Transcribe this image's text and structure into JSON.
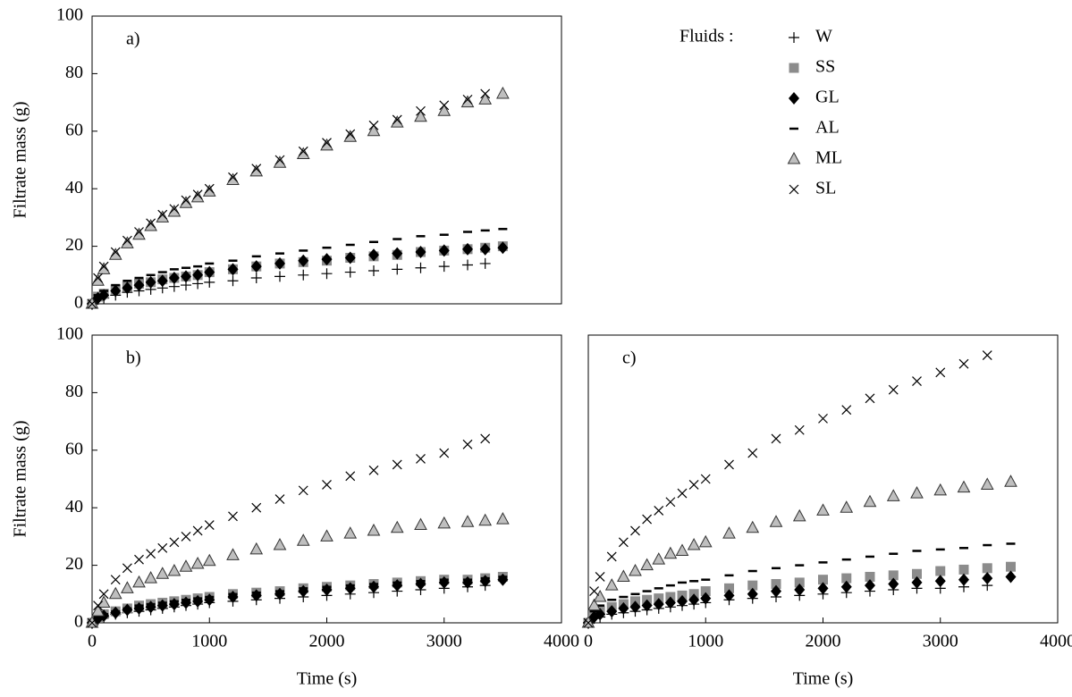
{
  "chart_data": [
    {
      "type": "scatter",
      "panel_label": "a)",
      "y_label": "Filtrate mass (g)",
      "legend_title": "Fluids :",
      "xlim": [
        0,
        4000
      ],
      "ylim": [
        0,
        100
      ],
      "yticks": [
        0,
        20,
        40,
        60,
        80,
        100
      ],
      "x": [
        0,
        50,
        100,
        200,
        300,
        400,
        500,
        600,
        700,
        800,
        900,
        1000,
        1200,
        1400,
        1600,
        1800,
        2000,
        2200,
        2400,
        2600,
        2800,
        3000,
        3200,
        3350,
        3500
      ],
      "series": [
        {
          "name": "W",
          "marker": "plus",
          "color": "#000000",
          "values": [
            0,
            1.5,
            2,
            3,
            4,
            4.5,
            5,
            5.5,
            6,
            6.5,
            7,
            7.5,
            8,
            9,
            9.5,
            10,
            10.5,
            11,
            11.5,
            12,
            12.5,
            13,
            13.5,
            14,
            null
          ]
        },
        {
          "name": "SS",
          "marker": "square",
          "color": "#8c8c8c",
          "values": [
            0,
            2.5,
            3.5,
            5,
            6,
            7,
            7.5,
            8.5,
            9,
            9.5,
            10,
            11,
            12,
            13,
            14,
            14.5,
            15,
            16,
            16.5,
            17,
            18,
            18.5,
            19,
            19.5,
            20
          ]
        },
        {
          "name": "GL",
          "marker": "diamond",
          "color": "#000000",
          "values": [
            0,
            2,
            3,
            4.5,
            5.5,
            6.5,
            7.5,
            8,
            9,
            9.5,
            10,
            11,
            12,
            13,
            14,
            15,
            15.5,
            16,
            17,
            17.5,
            18,
            18.5,
            19,
            19,
            19.5
          ]
        },
        {
          "name": "AL",
          "marker": "dash",
          "color": "#000000",
          "values": [
            0,
            3,
            4.5,
            6.5,
            8,
            9,
            10,
            11,
            12,
            12.5,
            13,
            14,
            15,
            16.5,
            17.5,
            18.5,
            19.5,
            20.5,
            21.5,
            22.5,
            23.5,
            24,
            25,
            25.5,
            26
          ]
        },
        {
          "name": "ML",
          "marker": "triangle",
          "color": "#bfbfbf",
          "values": [
            0,
            8,
            12,
            17,
            21,
            24,
            27,
            30,
            32,
            35,
            37,
            39,
            43,
            46,
            49,
            52,
            55,
            58,
            60,
            63,
            65,
            67,
            70,
            71,
            73
          ]
        },
        {
          "name": "SL",
          "marker": "x",
          "color": "#000000",
          "values": [
            0,
            9,
            13,
            18,
            22,
            25,
            28,
            31,
            33,
            36,
            38,
            40,
            44,
            47,
            50,
            53,
            56,
            59,
            62,
            64,
            67,
            69,
            71,
            73,
            null
          ]
        }
      ]
    },
    {
      "type": "scatter",
      "panel_label": "b)",
      "y_label": "Filtrate mass (g)",
      "x_label": "Time (s)",
      "xlim": [
        0,
        4000
      ],
      "ylim": [
        0,
        100
      ],
      "xticks": [
        0,
        1000,
        2000,
        3000,
        4000
      ],
      "yticks": [
        0,
        20,
        40,
        60,
        80,
        100
      ],
      "x": [
        0,
        50,
        100,
        200,
        300,
        400,
        500,
        600,
        700,
        800,
        900,
        1000,
        1200,
        1400,
        1600,
        1800,
        2000,
        2200,
        2400,
        2600,
        2800,
        3000,
        3200,
        3350,
        3500
      ],
      "series": [
        {
          "marker": "plus",
          "color": "#000000",
          "values": [
            0,
            1,
            2,
            3,
            3.5,
            4,
            4.5,
            5,
            5.5,
            6,
            6.5,
            7,
            7.5,
            8,
            8.5,
            9,
            9.5,
            10,
            10.5,
            11,
            11.5,
            12,
            12.5,
            13,
            null
          ]
        },
        {
          "marker": "square",
          "color": "#8c8c8c",
          "values": [
            0,
            2,
            3,
            4,
            5,
            6,
            6.5,
            7,
            7.5,
            8,
            8.5,
            9,
            10,
            10.5,
            11,
            12,
            12.5,
            13,
            13.5,
            14,
            14.5,
            15,
            15,
            15.5,
            16
          ]
        },
        {
          "marker": "diamond",
          "color": "#000000",
          "values": [
            0,
            1.5,
            2.5,
            3.5,
            4.5,
            5,
            5.5,
            6,
            6.5,
            7,
            7.5,
            8,
            9,
            9.5,
            10,
            11,
            11.5,
            12,
            12.5,
            13,
            13.5,
            14,
            14,
            14.5,
            15
          ]
        },
        {
          "marker": "dash",
          "color": "#000000",
          "values": [
            0,
            2,
            3,
            4,
            5,
            6,
            6.5,
            7,
            7.5,
            8,
            8.5,
            9,
            10,
            10.5,
            11,
            12,
            12.5,
            13,
            13.5,
            14,
            14.5,
            15,
            15,
            15.5,
            16
          ]
        },
        {
          "marker": "triangle",
          "color": "#bfbfbf",
          "values": [
            0,
            4,
            7,
            10,
            12,
            14,
            15.5,
            17,
            18,
            19.5,
            20.5,
            21.5,
            23.5,
            25.5,
            27,
            28.5,
            30,
            31,
            32,
            33,
            34,
            34.5,
            35,
            35.5,
            36
          ]
        },
        {
          "marker": "x",
          "color": "#000000",
          "values": [
            0,
            6,
            10,
            15,
            19,
            22,
            24,
            26,
            28,
            30,
            32,
            34,
            37,
            40,
            43,
            46,
            48,
            51,
            53,
            55,
            57,
            59,
            62,
            64,
            null
          ]
        }
      ]
    },
    {
      "type": "scatter",
      "panel_label": "c)",
      "x_label": "Time (s)",
      "xlim": [
        0,
        4000
      ],
      "ylim": [
        0,
        100
      ],
      "xticks": [
        0,
        1000,
        2000,
        3000,
        4000
      ],
      "x": [
        0,
        50,
        100,
        200,
        300,
        400,
        500,
        600,
        700,
        800,
        900,
        1000,
        1200,
        1400,
        1600,
        1800,
        2000,
        2200,
        2400,
        2600,
        2800,
        3000,
        3200,
        3400,
        3600
      ],
      "series": [
        {
          "marker": "plus",
          "color": "#000000",
          "values": [
            0,
            1.5,
            2,
            3,
            3.5,
            4,
            4.5,
            5,
            5.5,
            6,
            6.5,
            7,
            8,
            8.5,
            9,
            9.5,
            10,
            10.5,
            11,
            11.5,
            12,
            12,
            12.5,
            13,
            null
          ]
        },
        {
          "marker": "square",
          "color": "#8c8c8c",
          "values": [
            0,
            3,
            4,
            5.5,
            6.5,
            7.5,
            8,
            8.5,
            9,
            9.5,
            10,
            11,
            12,
            13,
            13.5,
            14,
            15,
            15.5,
            16,
            16.5,
            17,
            18,
            18.5,
            19,
            19.5
          ]
        },
        {
          "marker": "diamond",
          "color": "#000000",
          "values": [
            0,
            2,
            3,
            4,
            5,
            5.5,
            6,
            6.5,
            7,
            7.5,
            8,
            8.5,
            9.5,
            10,
            11,
            11.5,
            12,
            12.5,
            13,
            13.5,
            14,
            14.5,
            15,
            15.5,
            16
          ]
        },
        {
          "marker": "dash",
          "color": "#000000",
          "values": [
            0,
            4,
            6,
            8,
            9,
            10,
            11,
            12,
            13,
            14,
            14.5,
            15,
            16.5,
            18,
            19,
            20,
            21,
            22,
            23,
            24,
            25,
            25.5,
            26,
            27,
            27.5
          ]
        },
        {
          "marker": "triangle",
          "color": "#bfbfbf",
          "values": [
            0,
            6,
            9,
            13,
            16,
            18,
            20,
            22,
            24,
            25,
            27,
            28,
            31,
            33,
            35,
            37,
            39,
            40,
            42,
            44,
            45,
            46,
            47,
            48,
            49
          ]
        },
        {
          "marker": "x",
          "color": "#000000",
          "values": [
            0,
            11,
            16,
            23,
            28,
            32,
            36,
            39,
            42,
            45,
            48,
            50,
            55,
            59,
            64,
            67,
            71,
            74,
            78,
            81,
            84,
            87,
            90,
            93,
            null
          ]
        }
      ]
    }
  ]
}
